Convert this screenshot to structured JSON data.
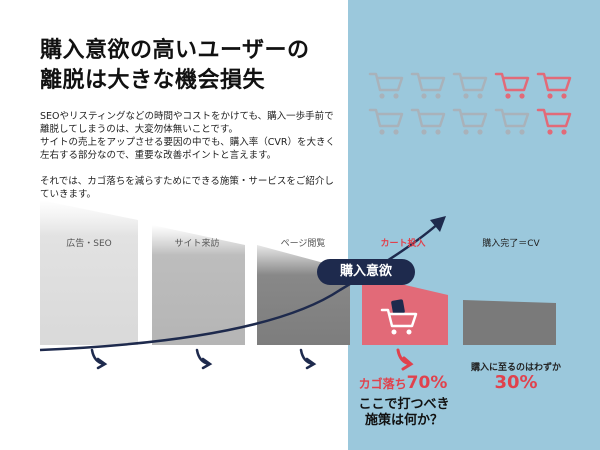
{
  "title": {
    "line1": "購入意欲の高いユーザーの",
    "line2": "離脱は大きな機会損失"
  },
  "body": {
    "paragraph1": "SEOやリスティングなどの時間やコストをかけても、購入一歩手前で離脱してしまうのは、大変勿体無いことです。",
    "paragraph2": "サイトの売上をアップさせる要因の中でも、購入率（CVR）を大きく左右する部分なので、重要な改善ポイントと言えます。",
    "paragraph3": "それでは、カゴ落ちを減らすためにできる施策・サービスをご紹介していきます。"
  },
  "stages": [
    {
      "label": "広告・SEO"
    },
    {
      "label": "サイト来訪"
    },
    {
      "label": "ページ閲覧"
    },
    {
      "label": "カート投入"
    },
    {
      "label": "購入完了＝CV"
    }
  ],
  "curve_label": "購入意欲",
  "cart_drop": {
    "label": "カゴ落ち",
    "value": "70%"
  },
  "question": {
    "line1": "ここで打つべき",
    "line2": "施策は何か？"
  },
  "conversion": {
    "label": "購入に至るのはわずか",
    "value": "30%"
  },
  "carts": {
    "gray_count": 7,
    "red_count": 3
  },
  "colors": {
    "accent_red": "#e0424d",
    "panel_blue": "#9bc8dc",
    "navy": "#1e2a4d",
    "cart_gray": "#a9b2ba",
    "cart_red": "#e26a78"
  },
  "icons": [
    "shopping-cart-icon",
    "arrow-down-right-icon",
    "arrow-up-right-icon",
    "bag-icon"
  ]
}
